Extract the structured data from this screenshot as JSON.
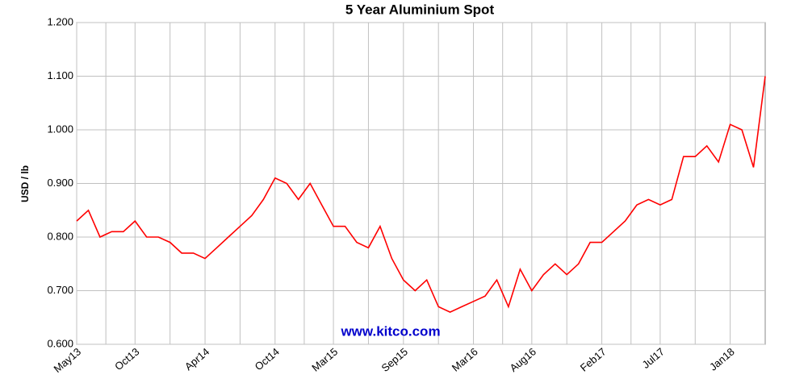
{
  "chart_data": {
    "type": "line",
    "title": "5 Year Aluminium Spot",
    "ylabel": "USD / lb",
    "watermark": "www.kitco.com",
    "color": "#ff0000",
    "grid": true,
    "x": [
      "2013-05",
      "2013-06",
      "2013-07",
      "2013-08",
      "2013-09",
      "2013-10",
      "2013-11",
      "2013-12",
      "2014-01",
      "2014-02",
      "2014-03",
      "2014-04",
      "2014-05",
      "2014-06",
      "2014-07",
      "2014-08",
      "2014-09",
      "2014-10",
      "2014-11",
      "2014-12",
      "2015-01",
      "2015-02",
      "2015-03",
      "2015-04",
      "2015-05",
      "2015-06",
      "2015-07",
      "2015-08",
      "2015-09",
      "2015-10",
      "2015-11",
      "2015-12",
      "2016-01",
      "2016-02",
      "2016-03",
      "2016-04",
      "2016-05",
      "2016-06",
      "2016-07",
      "2016-08",
      "2016-09",
      "2016-10",
      "2016-11",
      "2016-12",
      "2017-01",
      "2017-02",
      "2017-03",
      "2017-04",
      "2017-05",
      "2017-06",
      "2017-07",
      "2017-08",
      "2017-09",
      "2017-10",
      "2017-11",
      "2017-12",
      "2018-01",
      "2018-02",
      "2018-03",
      "2018-04"
    ],
    "values": [
      0.83,
      0.85,
      0.8,
      0.81,
      0.81,
      0.83,
      0.8,
      0.8,
      0.79,
      0.77,
      0.77,
      0.76,
      0.78,
      0.8,
      0.82,
      0.84,
      0.87,
      0.91,
      0.9,
      0.87,
      0.9,
      0.86,
      0.82,
      0.82,
      0.79,
      0.78,
      0.82,
      0.76,
      0.72,
      0.7,
      0.72,
      0.67,
      0.66,
      0.67,
      0.68,
      0.69,
      0.72,
      0.67,
      0.74,
      0.7,
      0.73,
      0.75,
      0.73,
      0.75,
      0.79,
      0.79,
      0.81,
      0.83,
      0.86,
      0.87,
      0.86,
      0.87,
      0.95,
      0.95,
      0.97,
      0.94,
      1.01,
      1.0,
      0.93,
      1.1
    ],
    "xlim": [
      "2013-05",
      "2018-04"
    ],
    "xticks": [
      {
        "value": "2013-05",
        "label": "May13"
      },
      {
        "value": "2013-10",
        "label": "Oct13"
      },
      {
        "value": "2014-04",
        "label": "Apr14"
      },
      {
        "value": "2014-10",
        "label": "Oct14"
      },
      {
        "value": "2015-03",
        "label": "Mar15"
      },
      {
        "value": "2015-09",
        "label": "Sep15"
      },
      {
        "value": "2016-03",
        "label": "Mar16"
      },
      {
        "value": "2016-08",
        "label": "Aug16"
      },
      {
        "value": "2017-02",
        "label": "Feb17"
      },
      {
        "value": "2017-07",
        "label": "Jul17"
      },
      {
        "value": "2018-01",
        "label": "Jan18"
      }
    ],
    "ylim": [
      0.6,
      1.2
    ],
    "yticks": [
      {
        "value": 0.6,
        "label": "0.600"
      },
      {
        "value": 0.7,
        "label": "0.700"
      },
      {
        "value": 0.8,
        "label": "0.800"
      },
      {
        "value": 0.9,
        "label": "0.900"
      },
      {
        "value": 1.0,
        "label": "1.000"
      },
      {
        "value": 1.1,
        "label": "1.100"
      },
      {
        "value": 1.2,
        "label": "1.200"
      }
    ]
  }
}
